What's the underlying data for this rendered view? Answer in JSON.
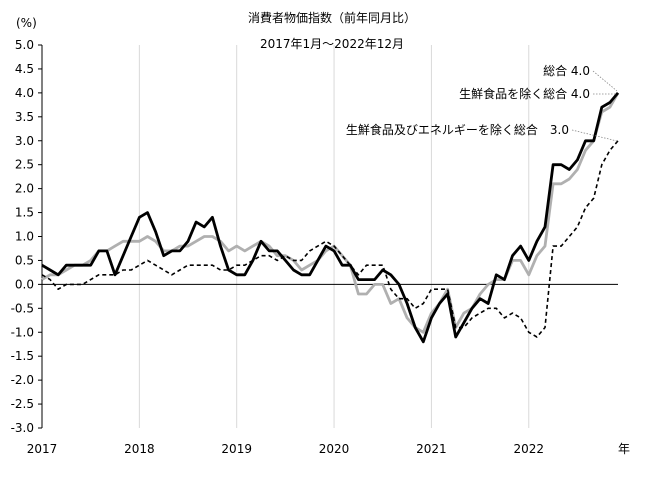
{
  "chart_data": {
    "type": "line",
    "title": "消費者物価指数（前年同月比）",
    "subtitle": "2017年1月～2022年12月",
    "ylabel": "(%)",
    "xlabel": "年",
    "ylim": [
      -3.0,
      5.0
    ],
    "y_ticks": [
      "5.0",
      "4.5",
      "4.0",
      "3.5",
      "3.0",
      "2.5",
      "2.0",
      "1.5",
      "1.0",
      "0.5",
      "0.0",
      "-0.5",
      "-1.0",
      "-1.5",
      "-2.0",
      "-2.5",
      "-3.0"
    ],
    "x_ticks": [
      "2017",
      "2018",
      "2019",
      "2020",
      "2021",
      "2022"
    ],
    "grid_x": true,
    "grid_y": false,
    "legend_placement": "right, labels at line ends",
    "series": [
      {
        "name": "総合",
        "label": "総合 4.0",
        "color": "#000000",
        "style": "solid",
        "values": [
          0.4,
          0.3,
          0.2,
          0.4,
          0.4,
          0.4,
          0.4,
          0.7,
          0.7,
          0.2,
          0.6,
          1.0,
          1.4,
          1.5,
          1.1,
          0.6,
          0.7,
          0.7,
          0.9,
          1.3,
          1.2,
          1.4,
          0.8,
          0.3,
          0.2,
          0.2,
          0.5,
          0.9,
          0.7,
          0.7,
          0.5,
          0.3,
          0.2,
          0.2,
          0.5,
          0.8,
          0.7,
          0.4,
          0.4,
          0.1,
          0.1,
          0.1,
          0.3,
          0.2,
          0.0,
          -0.4,
          -0.9,
          -1.2,
          -0.7,
          -0.4,
          -0.2,
          -1.1,
          -0.8,
          -0.5,
          -0.3,
          -0.4,
          0.2,
          0.1,
          0.6,
          0.8,
          0.5,
          0.9,
          1.2,
          2.5,
          2.5,
          2.4,
          2.6,
          3.0,
          3.0,
          3.7,
          3.8,
          4.0
        ]
      },
      {
        "name": "生鮮食品を除く総合",
        "label": "生鮮食品を除く総合 4.0",
        "color": "#b0b0b0",
        "style": "solid",
        "values": [
          0.1,
          0.2,
          0.2,
          0.3,
          0.4,
          0.4,
          0.5,
          0.7,
          0.7,
          0.8,
          0.9,
          0.9,
          0.9,
          1.0,
          0.9,
          0.7,
          0.7,
          0.8,
          0.8,
          0.9,
          1.0,
          1.0,
          0.9,
          0.7,
          0.8,
          0.7,
          0.8,
          0.9,
          0.8,
          0.6,
          0.6,
          0.5,
          0.3,
          0.4,
          0.5,
          0.7,
          0.8,
          0.6,
          0.4,
          -0.2,
          -0.2,
          0.0,
          0.0,
          -0.4,
          -0.3,
          -0.7,
          -0.9,
          -1.0,
          -0.6,
          -0.4,
          -0.1,
          -0.9,
          -0.6,
          -0.5,
          -0.2,
          0.0,
          0.1,
          0.1,
          0.5,
          0.5,
          0.2,
          0.6,
          0.8,
          2.1,
          2.1,
          2.2,
          2.4,
          2.8,
          3.0,
          3.6,
          3.7,
          4.0
        ]
      },
      {
        "name": "生鮮食品及びエネルギーを除く総合",
        "label": "生鮮食品及びエネルギーを除く総合　3.0",
        "color": "#000000",
        "style": "dashed",
        "values": [
          0.2,
          0.1,
          -0.1,
          0.0,
          0.0,
          0.0,
          0.1,
          0.2,
          0.2,
          0.2,
          0.3,
          0.3,
          0.4,
          0.5,
          0.4,
          0.3,
          0.2,
          0.3,
          0.4,
          0.4,
          0.4,
          0.4,
          0.3,
          0.3,
          0.4,
          0.4,
          0.5,
          0.6,
          0.6,
          0.5,
          0.6,
          0.5,
          0.5,
          0.7,
          0.8,
          0.9,
          0.8,
          0.6,
          0.4,
          0.2,
          0.4,
          0.4,
          0.4,
          -0.1,
          -0.3,
          -0.3,
          -0.5,
          -0.4,
          -0.1,
          -0.1,
          -0.1,
          -0.9,
          -0.9,
          -0.7,
          -0.6,
          -0.5,
          -0.5,
          -0.7,
          -0.6,
          -0.7,
          -1.0,
          -1.1,
          -0.9,
          0.8,
          0.8,
          1.0,
          1.2,
          1.6,
          1.8,
          2.5,
          2.8,
          3.0
        ]
      }
    ]
  }
}
